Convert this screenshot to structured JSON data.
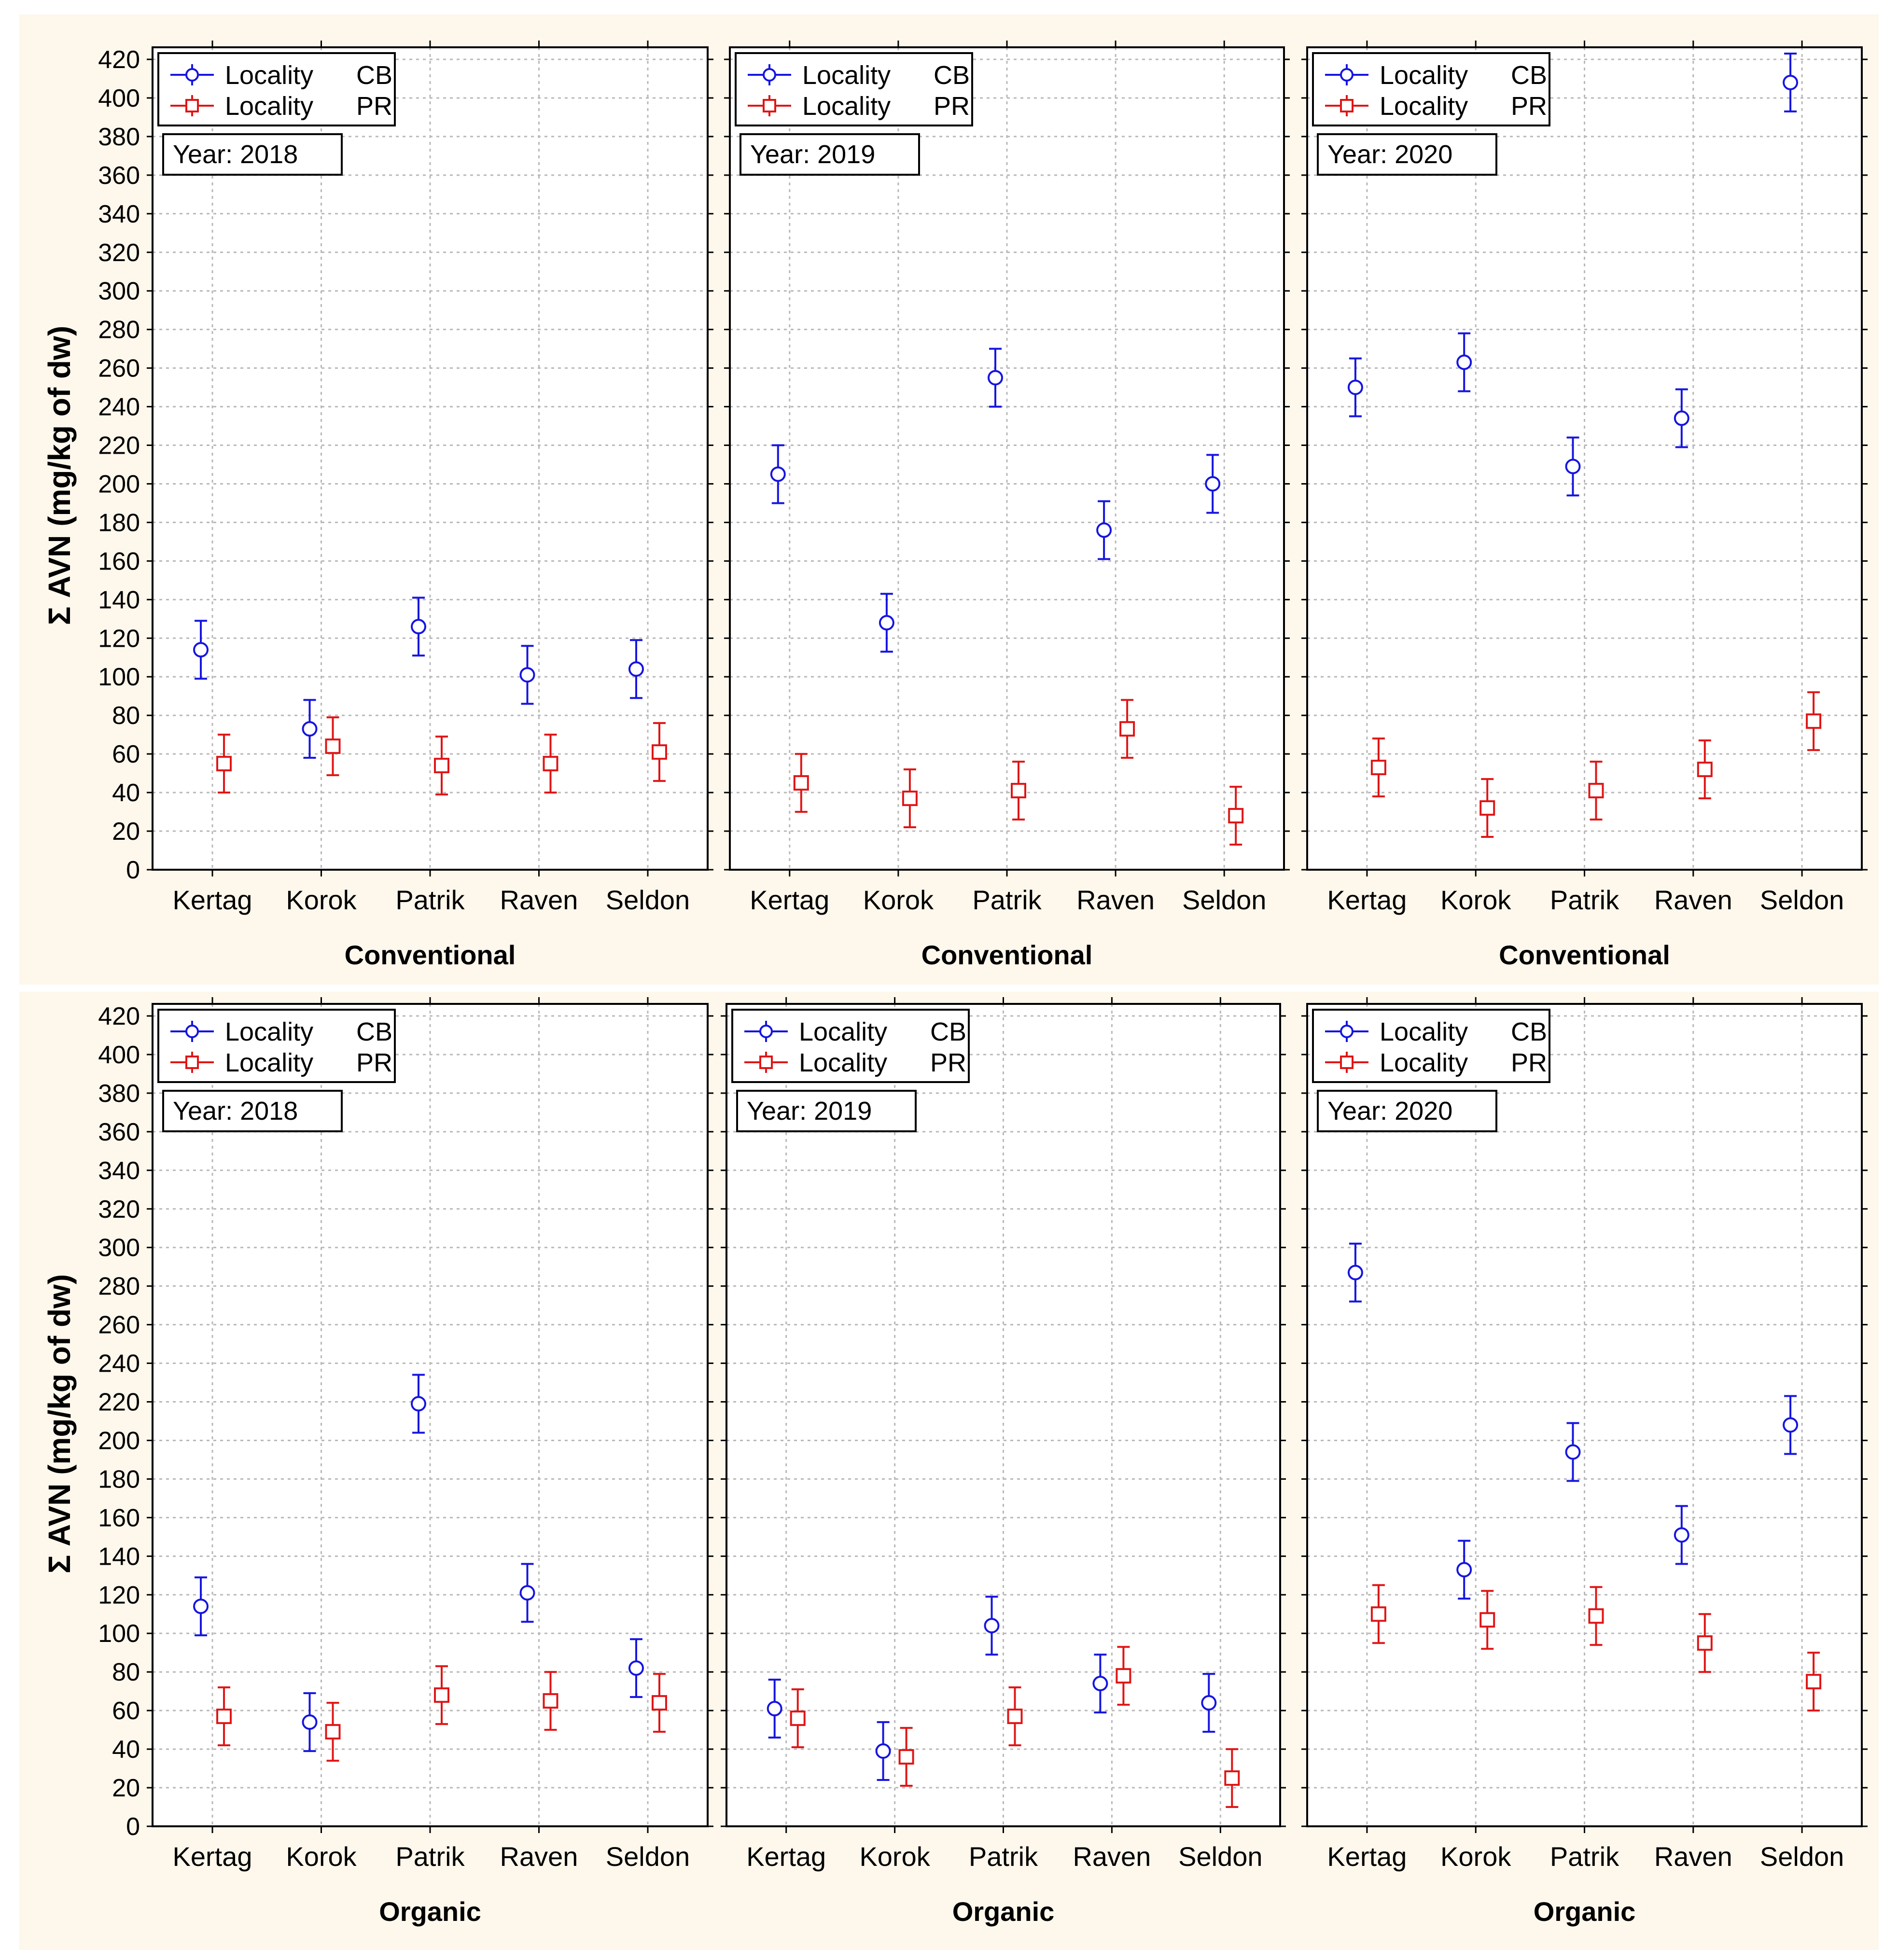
{
  "y_axis_label": "Σ AVN (mg/kg of dw)",
  "legend": {
    "prefix": "Locality",
    "entries": [
      {
        "code": "CB",
        "color": "#1515e0",
        "marker": "circle"
      },
      {
        "code": "PR",
        "color": "#e01515",
        "marker": "square"
      }
    ]
  },
  "chart_data": [
    {
      "type": "scatter",
      "title": "Year: 2018",
      "xlabel": "Conventional",
      "ylabel": "Σ AVN (mg/kg of dw)",
      "ylim": [
        0,
        420
      ],
      "categories": [
        "Kertag",
        "Korok",
        "Patrik",
        "Raven",
        "Seldon"
      ],
      "error_halfwidth": 15,
      "grid": true,
      "legend_position": "top-left",
      "series": [
        {
          "name": "Locality CB",
          "values": [
            114,
            73,
            126,
            101,
            104
          ]
        },
        {
          "name": "Locality PR",
          "values": [
            55,
            64,
            54,
            55,
            61
          ]
        }
      ]
    },
    {
      "type": "scatter",
      "title": "Year: 2019",
      "xlabel": "Conventional",
      "ylabel": "",
      "ylim": [
        0,
        420
      ],
      "categories": [
        "Kertag",
        "Korok",
        "Patrik",
        "Raven",
        "Seldon"
      ],
      "error_halfwidth": 15,
      "grid": true,
      "legend_position": "top-left",
      "series": [
        {
          "name": "Locality CB",
          "values": [
            205,
            128,
            255,
            176,
            200
          ]
        },
        {
          "name": "Locality PR",
          "values": [
            45,
            37,
            41,
            73,
            28
          ]
        }
      ]
    },
    {
      "type": "scatter",
      "title": "Year: 2020",
      "xlabel": "Conventional",
      "ylabel": "",
      "ylim": [
        0,
        420
      ],
      "categories": [
        "Kertag",
        "Korok",
        "Patrik",
        "Raven",
        "Seldon"
      ],
      "error_halfwidth": 15,
      "grid": true,
      "legend_position": "top-left",
      "series": [
        {
          "name": "Locality CB",
          "values": [
            250,
            263,
            209,
            234,
            408
          ]
        },
        {
          "name": "Locality PR",
          "values": [
            53,
            32,
            41,
            52,
            77
          ]
        }
      ]
    },
    {
      "type": "scatter",
      "title": "Year: 2018",
      "xlabel": "Organic",
      "ylabel": "Σ AVN (mg/kg of dw)",
      "ylim": [
        0,
        420
      ],
      "categories": [
        "Kertag",
        "Korok",
        "Patrik",
        "Raven",
        "Seldon"
      ],
      "error_halfwidth": 15,
      "grid": true,
      "legend_position": "top-left",
      "series": [
        {
          "name": "Locality CB",
          "values": [
            114,
            54,
            219,
            121,
            82
          ]
        },
        {
          "name": "Locality PR",
          "values": [
            57,
            49,
            68,
            65,
            64
          ]
        }
      ]
    },
    {
      "type": "scatter",
      "title": "Year: 2019",
      "xlabel": "Organic",
      "ylabel": "",
      "ylim": [
        0,
        420
      ],
      "categories": [
        "Kertag",
        "Korok",
        "Patrik",
        "Raven",
        "Seldon"
      ],
      "error_halfwidth": 15,
      "grid": true,
      "legend_position": "top-left",
      "series": [
        {
          "name": "Locality CB",
          "values": [
            61,
            39,
            104,
            74,
            64
          ]
        },
        {
          "name": "Locality PR",
          "values": [
            56,
            36,
            57,
            78,
            25
          ]
        }
      ]
    },
    {
      "type": "scatter",
      "title": "Year: 2020",
      "xlabel": "Organic",
      "ylabel": "",
      "ylim": [
        0,
        420
      ],
      "categories": [
        "Kertag",
        "Korok",
        "Patrik",
        "Raven",
        "Seldon"
      ],
      "error_halfwidth": 15,
      "grid": true,
      "legend_position": "top-left",
      "series": [
        {
          "name": "Locality CB",
          "values": [
            287,
            133,
            194,
            151,
            208
          ]
        },
        {
          "name": "Locality PR",
          "values": [
            110,
            107,
            109,
            95,
            75
          ]
        }
      ]
    }
  ]
}
